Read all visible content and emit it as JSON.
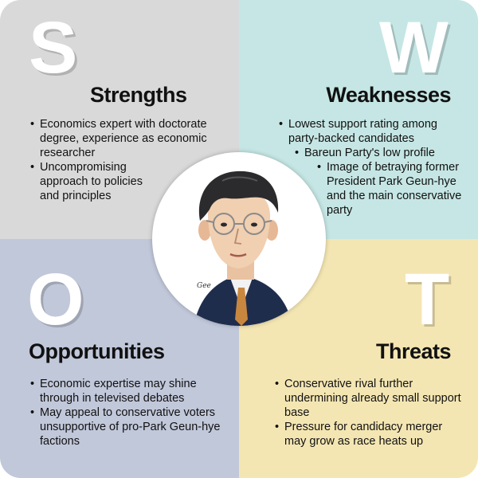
{
  "colors": {
    "strengths_bg": "#d9d9da",
    "weaknesses_bg": "#c5e6e4",
    "opportunities_bg": "#c1c8da",
    "threats_bg": "#f4e6b3"
  },
  "strengths": {
    "letter": "S",
    "title": "Strengths",
    "items": [
      "Economics expert with doctorate degree, experience as economic researcher",
      "Uncompromising approach to policies and principles"
    ]
  },
  "weaknesses": {
    "letter": "W",
    "title": "Weaknesses",
    "items": [
      "Lowest support rating among party-backed candidates",
      "Bareun Party's low profile",
      "Image of betraying former President Park Geun-hye and the main conservative party"
    ]
  },
  "opportunities": {
    "letter": "O",
    "title": "Opportunities",
    "items": [
      "Economic expertise may shine through in televised debates",
      "May appeal to conservative voters unsupportive of pro-Park Geun-hye factions"
    ]
  },
  "threats": {
    "letter": "T",
    "title": "Threats",
    "items": [
      "Conservative rival further undermining already small support base",
      "Pressure for candidacy merger may grow as race heats up"
    ]
  },
  "portrait": {
    "signature": "Gee"
  }
}
